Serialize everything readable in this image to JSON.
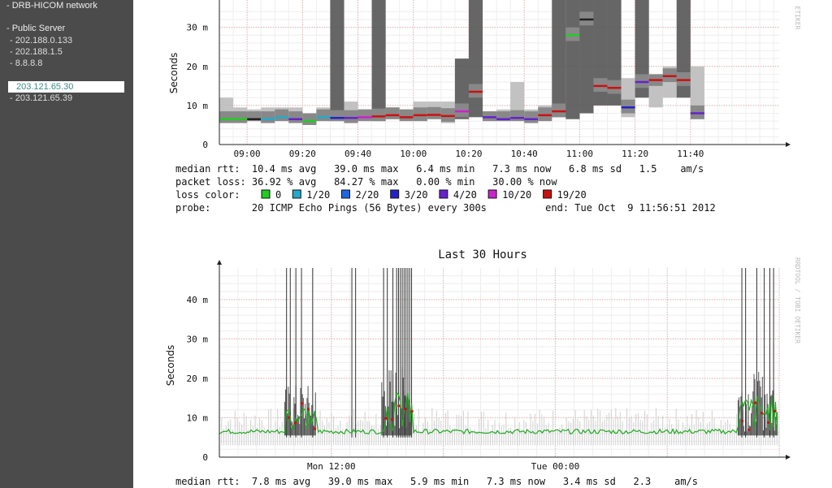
{
  "sidebar": {
    "items": [
      {
        "label": "- DRB-HICOM network",
        "kind": "group"
      },
      {
        "label": "- Public Server",
        "kind": "group"
      },
      {
        "label": "- 202.188.0.133",
        "kind": "host"
      },
      {
        "label": "- 202.188.1.5",
        "kind": "host"
      },
      {
        "label": "- 8.8.8.8",
        "kind": "host"
      },
      {
        "label": "203.121.65.30",
        "kind": "host-active"
      },
      {
        "label": "- 203.121.65.39",
        "kind": "host"
      }
    ]
  },
  "chart_data": [
    {
      "type": "area",
      "title": "",
      "ylabel": "Seconds",
      "side_label": "ETIKER",
      "ylim": [
        0,
        0.037
      ],
      "yticks": [
        {
          "v": 0,
          "label": "0"
        },
        {
          "v": 0.01,
          "label": "10 m"
        },
        {
          "v": 0.02,
          "label": "20 m"
        },
        {
          "v": 0.03,
          "label": "30 m"
        }
      ],
      "xticks": [
        "09:00",
        "09:20",
        "09:40",
        "10:00",
        "10:20",
        "10:40",
        "11:00",
        "11:20",
        "11:40"
      ],
      "x_minutes_range": [
        530,
        732
      ],
      "samples": [
        {
          "t": 530,
          "lo": 0.0055,
          "hi": 0.012,
          "med": 0.0065,
          "c": "green"
        },
        {
          "t": 535,
          "lo": 0.0055,
          "hi": 0.0095,
          "med": 0.0065,
          "c": "green"
        },
        {
          "t": 540,
          "lo": 0.006,
          "hi": 0.009,
          "med": 0.0065,
          "c": "black"
        },
        {
          "t": 545,
          "lo": 0.0055,
          "hi": 0.0095,
          "med": 0.0065,
          "c": "cyan"
        },
        {
          "t": 550,
          "lo": 0.006,
          "hi": 0.0095,
          "med": 0.007,
          "c": "cyan"
        },
        {
          "t": 555,
          "lo": 0.0055,
          "hi": 0.0095,
          "med": 0.0065,
          "c": "purple"
        },
        {
          "t": 560,
          "lo": 0.005,
          "hi": 0.008,
          "med": 0.006,
          "c": "green"
        },
        {
          "t": 565,
          "lo": 0.006,
          "hi": 0.0095,
          "med": 0.007,
          "c": "cyan"
        },
        {
          "t": 570,
          "lo": 0.006,
          "hi": 0.037,
          "med": 0.0068,
          "c": "blue"
        },
        {
          "t": 575,
          "lo": 0.0055,
          "hi": 0.011,
          "med": 0.0068,
          "c": "purple"
        },
        {
          "t": 580,
          "lo": 0.006,
          "hi": 0.009,
          "med": 0.007,
          "c": "magenta"
        },
        {
          "t": 585,
          "lo": 0.006,
          "hi": 0.037,
          "med": 0.0072,
          "c": "red"
        },
        {
          "t": 590,
          "lo": 0.0065,
          "hi": 0.0095,
          "med": 0.0075,
          "c": "red"
        },
        {
          "t": 595,
          "lo": 0.006,
          "hi": 0.009,
          "med": 0.007,
          "c": "red"
        },
        {
          "t": 600,
          "lo": 0.006,
          "hi": 0.011,
          "med": 0.0075,
          "c": "red"
        },
        {
          "t": 605,
          "lo": 0.0065,
          "hi": 0.011,
          "med": 0.0076,
          "c": "red"
        },
        {
          "t": 610,
          "lo": 0.0055,
          "hi": 0.011,
          "med": 0.0073,
          "c": "red"
        },
        {
          "t": 615,
          "lo": 0.0065,
          "hi": 0.022,
          "med": 0.0085,
          "c": "magenta"
        },
        {
          "t": 620,
          "lo": 0.007,
          "hi": 0.037,
          "med": 0.0135,
          "c": "red"
        },
        {
          "t": 625,
          "lo": 0.006,
          "hi": 0.0085,
          "med": 0.007,
          "c": "purple"
        },
        {
          "t": 630,
          "lo": 0.006,
          "hi": 0.009,
          "med": 0.0065,
          "c": "purple"
        },
        {
          "t": 635,
          "lo": 0.006,
          "hi": 0.016,
          "med": 0.0068,
          "c": "purple"
        },
        {
          "t": 640,
          "lo": 0.0055,
          "hi": 0.009,
          "med": 0.0065,
          "c": "purple"
        },
        {
          "t": 645,
          "lo": 0.006,
          "hi": 0.01,
          "med": 0.0075,
          "c": "red"
        },
        {
          "t": 650,
          "lo": 0.007,
          "hi": 0.037,
          "med": 0.0085,
          "c": "red"
        },
        {
          "t": 655,
          "lo": 0.0065,
          "hi": 0.037,
          "med": 0.028,
          "c": "green"
        },
        {
          "t": 660,
          "lo": 0.008,
          "hi": 0.037,
          "med": 0.032,
          "c": "black"
        },
        {
          "t": 665,
          "lo": 0.01,
          "hi": 0.037,
          "med": 0.015,
          "c": "red"
        },
        {
          "t": 670,
          "lo": 0.01,
          "hi": 0.037,
          "med": 0.0145,
          "c": "red"
        },
        {
          "t": 675,
          "lo": 0.007,
          "hi": 0.017,
          "med": 0.0095,
          "c": "blue"
        },
        {
          "t": 680,
          "lo": 0.012,
          "hi": 0.037,
          "med": 0.016,
          "c": "purple"
        },
        {
          "t": 685,
          "lo": 0.0095,
          "hi": 0.018,
          "med": 0.0165,
          "c": "red"
        },
        {
          "t": 690,
          "lo": 0.012,
          "hi": 0.02,
          "med": 0.0175,
          "c": "red"
        },
        {
          "t": 695,
          "lo": 0.012,
          "hi": 0.037,
          "med": 0.0165,
          "c": "red"
        },
        {
          "t": 700,
          "lo": 0.0065,
          "hi": 0.02,
          "med": 0.008,
          "c": "purple"
        }
      ],
      "stats": {
        "line1": "median rtt:  10.4 ms avg   39.0 ms max   6.4 ms min   7.3 ms now   6.8 ms sd   1.5    am/s",
        "line2": "packet loss: 36.92 % avg   84.27 % max   0.00 % min   30.00 % now",
        "line3_label": "loss color:",
        "line4": "probe:       20 ICMP Echo Pings (56 Bytes) every 300s          end: Tue Oct  9 11:56:51 2012"
      },
      "loss_legend": [
        {
          "label": "0",
          "color": "#22cc22"
        },
        {
          "label": "1/20",
          "color": "#22aacc"
        },
        {
          "label": "2/20",
          "color": "#2266dd"
        },
        {
          "label": "3/20",
          "color": "#2222cc"
        },
        {
          "label": "4/20",
          "color": "#6622cc"
        },
        {
          "label": "10/20",
          "color": "#cc22cc"
        },
        {
          "label": "19/20",
          "color": "#cc1111"
        }
      ]
    },
    {
      "type": "area",
      "title": "Last 30 Hours",
      "ylabel": "Seconds",
      "side_label": "RRDTOOL / TOBI OETIKER",
      "ylim": [
        0,
        0.048
      ],
      "yticks": [
        {
          "v": 0,
          "label": "0"
        },
        {
          "v": 0.01,
          "label": "10 m"
        },
        {
          "v": 0.02,
          "label": "20 m"
        },
        {
          "v": 0.03,
          "label": "30 m"
        },
        {
          "v": 0.04,
          "label": "40 m"
        }
      ],
      "xticks": [
        {
          "h": 12,
          "label": "Mon 12:00"
        },
        {
          "h": 24,
          "label": "Tue 00:00"
        }
      ],
      "x_hours_range": [
        6,
        36
      ],
      "spikes_hours": [
        9.6,
        9.8,
        10.1,
        10.4,
        11.0,
        13.1,
        13.3,
        14.8,
        15.0,
        15.3,
        15.5,
        15.6,
        15.7,
        15.8,
        15.9,
        16.0,
        16.1,
        16.2,
        16.3,
        34.0,
        34.2,
        34.8,
        35.2,
        35.5,
        35.7
      ],
      "busy_ranges": [
        {
          "from": 9.5,
          "to": 11.2,
          "level": 0.014
        },
        {
          "from": 14.7,
          "to": 16.3,
          "level": 0.017
        },
        {
          "from": 33.8,
          "to": 35.9,
          "level": 0.016
        }
      ],
      "base_level": 0.0065,
      "stats": {
        "line1": "median rtt:  7.8 ms avg   39.0 ms max   5.9 ms min   7.3 ms now   3.4 ms sd   2.3    am/s"
      }
    }
  ]
}
